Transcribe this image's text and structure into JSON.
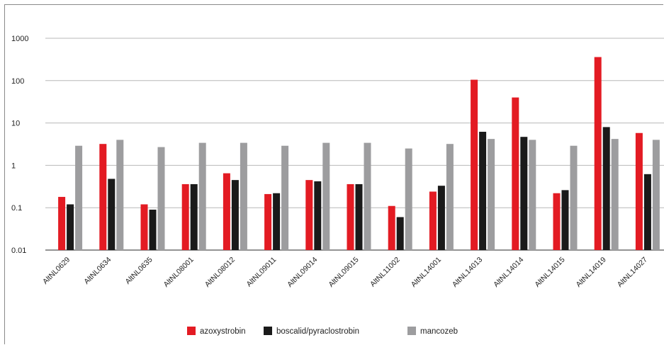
{
  "chart_data": {
    "type": "bar",
    "yscale": "log",
    "ylim": [
      0.01,
      1000
    ],
    "yticks": [
      "0.01",
      "0.1",
      "1",
      "10",
      "100",
      "1000"
    ],
    "grid": true,
    "legend_position": "bottom",
    "categories": [
      "AltNL0629",
      "AltNL0634",
      "AltNL0635",
      "AltNL08001",
      "AltNL08012",
      "AltNL09011",
      "AltNL09014",
      "AltNL09015",
      "AltNL11002",
      "AltNL14001",
      "AltNL14013",
      "AltNL14014",
      "AltNL14015",
      "AltNL14019",
      "AltNL14027"
    ],
    "series": [
      {
        "name": "azoxystrobin",
        "color": "#e31b23",
        "values": [
          0.18,
          3.2,
          0.12,
          0.36,
          0.65,
          0.21,
          0.45,
          0.36,
          0.11,
          0.24,
          105,
          40,
          0.22,
          360,
          5.8
        ]
      },
      {
        "name": "boscalid/pyraclostrobin",
        "color": "#1a1a1a",
        "values": [
          0.12,
          0.48,
          0.09,
          0.36,
          0.45,
          0.22,
          0.42,
          0.36,
          0.06,
          0.33,
          6.2,
          4.7,
          0.26,
          8.0,
          0.62
        ]
      },
      {
        "name": "mancozeb",
        "color": "#9d9d9f",
        "values": [
          2.9,
          4.0,
          2.7,
          3.4,
          3.4,
          2.9,
          3.4,
          3.4,
          2.5,
          3.2,
          4.2,
          4.0,
          2.9,
          4.2,
          4.0
        ]
      }
    ]
  }
}
